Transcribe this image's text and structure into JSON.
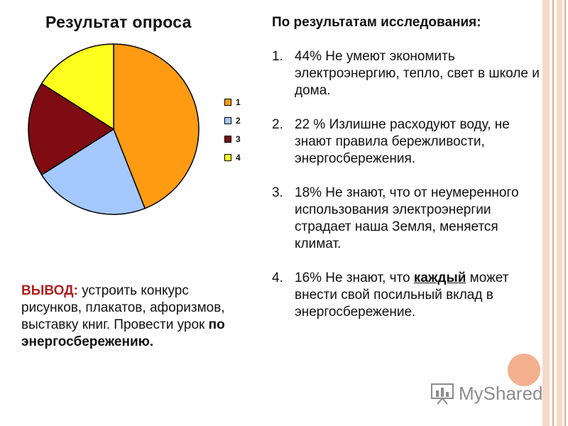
{
  "chart_data": {
    "type": "pie",
    "title": "Результат опроса",
    "categories": [
      "1",
      "2",
      "3",
      "4"
    ],
    "values": [
      44,
      22,
      18,
      16
    ],
    "colors": [
      "#ff9b12",
      "#a4c8ff",
      "#7e0c12",
      "#ffff1f"
    ],
    "legend": "right"
  },
  "findings": {
    "heading": "По результатам исследования:",
    "items": [
      {
        "num": "1.",
        "text": "44% Не умеют экономить электроэнергию, тепло, свет в школе и дома."
      },
      {
        "num": "2.",
        "text": "22 % Излишне расходуют воду, не знают правила бережливости, энергосбережения."
      },
      {
        "num": "3.",
        "text": "18%  Не знают, что от неумеренного использования электроэнергии страдает наша Земля, меняется климат."
      },
      {
        "num": "4.",
        "text_before": "16% Не знают, что ",
        "bold": "каждый",
        "text_after": " может внести свой посильный вклад в энергосбережение."
      }
    ]
  },
  "conclusion": {
    "label": "ВЫВОД:",
    "text": " устроить конкурс рисунков, плакатов, афоризмов, выставку  книг. Провести урок ",
    "bold": "по энергосбережению."
  },
  "watermark": {
    "text": "MyShared",
    "icon": "presentation-chart-icon"
  }
}
